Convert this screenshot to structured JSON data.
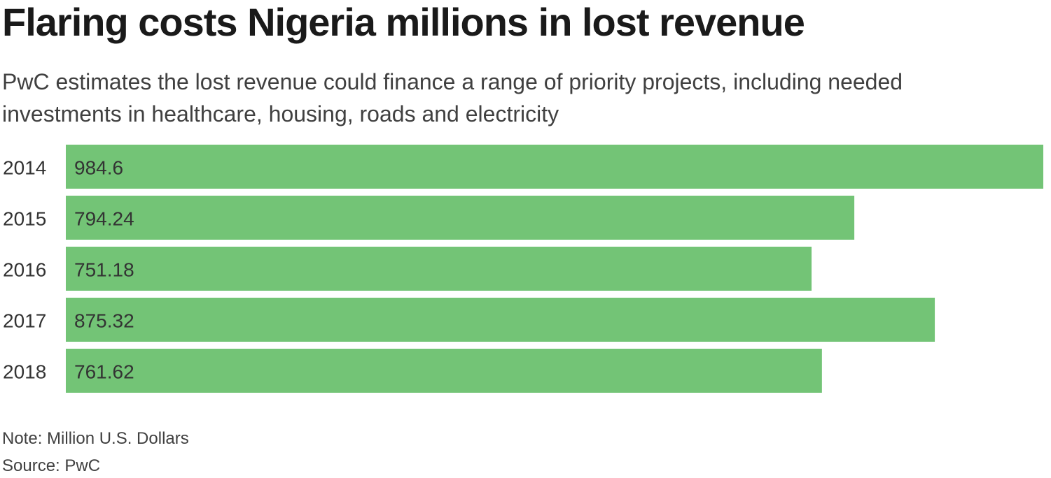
{
  "header": {
    "title": "Flaring costs Nigeria millions in lost revenue",
    "subtitle": "PwC estimates the lost revenue could finance a range of priority projects, including needed investments in healthcare, housing, roads and electricity"
  },
  "footer": {
    "note": "Note: Million U.S. Dollars",
    "source": "Source: PwC"
  },
  "colors": {
    "bar": "#73c476",
    "label": "#333333"
  },
  "chart_data": {
    "type": "bar",
    "orientation": "horizontal",
    "categories": [
      "2014",
      "2015",
      "2016",
      "2017",
      "2018"
    ],
    "values": [
      984.6,
      794.24,
      751.18,
      875.32,
      761.62
    ],
    "value_labels": [
      "984.6",
      "794.24",
      "751.18",
      "875.32",
      "761.62"
    ],
    "title": "Flaring costs Nigeria millions in lost revenue",
    "xlabel": "",
    "ylabel": "",
    "xlim": [
      0,
      984.6
    ],
    "grid": false,
    "legend": "none"
  }
}
